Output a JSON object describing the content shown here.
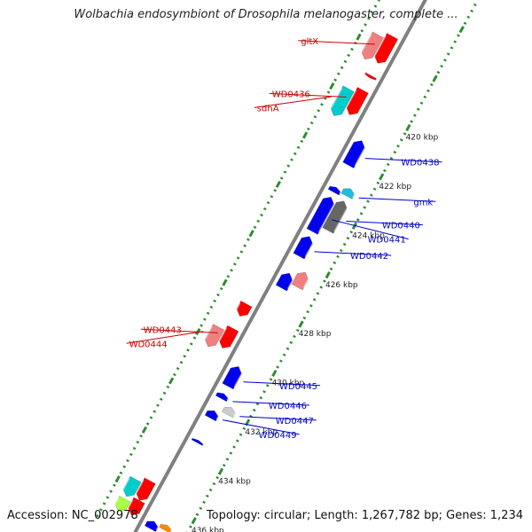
{
  "title": "Wolbachia endosymbiont of Drosophila melanogaster, complete ...",
  "footer": {
    "accession": "Accession: NC_002978",
    "summary": "Topology: circular; Length: 1,267,782 bp; Genes: 1,234"
  },
  "colors": {
    "backbone": "#808080",
    "ruler": "#2e8b2e",
    "left_label": "#0000cc",
    "right_label": "#cc0000"
  },
  "ruler_ticks": [
    {
      "label": "420 kbp",
      "pos": 420
    },
    {
      "label": "422 kbp",
      "pos": 422
    },
    {
      "label": "424 kbp",
      "pos": 424
    },
    {
      "label": "426 kbp",
      "pos": 426
    },
    {
      "label": "428 kbp",
      "pos": 428
    },
    {
      "label": "430 kbp",
      "pos": 430
    },
    {
      "label": "432 kbp",
      "pos": 432
    },
    {
      "label": "434 kbp",
      "pos": 434
    },
    {
      "label": "436 kbp",
      "pos": 436
    }
  ],
  "genes": [
    {
      "name": "gltX",
      "start": 417.4,
      "end": 418.5,
      "strand": "-",
      "track": 1,
      "color": "#ff0000",
      "side": "right"
    },
    {
      "name": "",
      "start": 417.6,
      "end": 418.6,
      "strand": "-",
      "track": 2,
      "color": "#f08080",
      "side": ""
    },
    {
      "name": "",
      "start": 419.0,
      "end": 419.1,
      "strand": "-",
      "track": 1,
      "color": "#ff0000",
      "side": ""
    },
    {
      "name": "WD0436",
      "start": 419.6,
      "end": 420.6,
      "strand": "-",
      "track": 1,
      "color": "#ff0000",
      "side": "right"
    },
    {
      "name": "sdhA",
      "start": 419.8,
      "end": 420.9,
      "strand": "-",
      "track": 2,
      "color": "#00cccc",
      "side": "right"
    },
    {
      "name": "WD0438",
      "start": 421.2,
      "end": 422.2,
      "strand": "+",
      "track": 1,
      "color": "#0000ee",
      "side": "left"
    },
    {
      "name": "gmk",
      "start": 422.9,
      "end": 423.2,
      "strand": "+",
      "track": 2,
      "color": "#22bbdd",
      "side": "left"
    },
    {
      "name": "",
      "start": 423.1,
      "end": 423.3,
      "strand": "+",
      "track": 1,
      "color": "#0000ee",
      "side": ""
    },
    {
      "name": "WD0440",
      "start": 423.4,
      "end": 424.6,
      "strand": "+",
      "track": 2,
      "color": "#666666",
      "side": "left"
    },
    {
      "name": "WD0441",
      "start": 423.5,
      "end": 424.9,
      "strand": "+",
      "track": 1,
      "color": "#0000ee",
      "side": "left"
    },
    {
      "name": "WD0442",
      "start": 425.1,
      "end": 425.9,
      "strand": "+",
      "track": 1,
      "color": "#0000ee",
      "side": "left"
    },
    {
      "name": "",
      "start": 426.3,
      "end": 426.9,
      "strand": "+",
      "track": 2,
      "color": "#f08080",
      "side": ""
    },
    {
      "name": "",
      "start": 426.6,
      "end": 427.2,
      "strand": "+",
      "track": 1,
      "color": "#0000ee",
      "side": ""
    },
    {
      "name": "",
      "start": 428.3,
      "end": 428.8,
      "strand": "-",
      "track": 1,
      "color": "#ff0000",
      "side": ""
    },
    {
      "name": "WD0443",
      "start": 429.3,
      "end": 430.1,
      "strand": "-",
      "track": 1,
      "color": "#ff0000",
      "side": "right"
    },
    {
      "name": "WD0444",
      "start": 429.5,
      "end": 430.3,
      "strand": "-",
      "track": 2,
      "color": "#f08080",
      "side": "right"
    },
    {
      "name": "WD0445",
      "start": 430.4,
      "end": 431.2,
      "strand": "+",
      "track": 1,
      "color": "#0000ee",
      "side": "left"
    },
    {
      "name": "WD0446",
      "start": 431.5,
      "end": 431.7,
      "strand": "+",
      "track": 1,
      "color": "#0000ee",
      "side": "left"
    },
    {
      "name": "WD0447",
      "start": 431.8,
      "end": 432.1,
      "strand": "+",
      "track": 2,
      "color": "#cccccc",
      "side": "left"
    },
    {
      "name": "WD0449",
      "start": 432.2,
      "end": 432.5,
      "strand": "+",
      "track": 1,
      "color": "#0000ee",
      "side": "left"
    },
    {
      "name": "",
      "start": 433.4,
      "end": 433.5,
      "strand": "+",
      "track": 1,
      "color": "#0000ee",
      "side": ""
    },
    {
      "name": "",
      "start": 435.5,
      "end": 436.3,
      "strand": "-",
      "track": 1,
      "color": "#ff0000",
      "side": ""
    },
    {
      "name": "",
      "start": 435.7,
      "end": 436.4,
      "strand": "-",
      "track": 2,
      "color": "#00cccc",
      "side": ""
    },
    {
      "name": "",
      "start": 436.3,
      "end": 436.9,
      "strand": "-",
      "track": 1,
      "color": "#ff0000",
      "side": ""
    },
    {
      "name": "",
      "start": 436.5,
      "end": 437.0,
      "strand": "-",
      "track": 2,
      "color": "#aaff44",
      "side": ""
    },
    {
      "name": "",
      "start": 436.6,
      "end": 436.8,
      "strand": "+",
      "track": 2,
      "color": "#ff8800",
      "side": ""
    },
    {
      "name": "",
      "start": 436.7,
      "end": 437.0,
      "strand": "+",
      "track": 1,
      "color": "#0000ee",
      "side": ""
    }
  ]
}
